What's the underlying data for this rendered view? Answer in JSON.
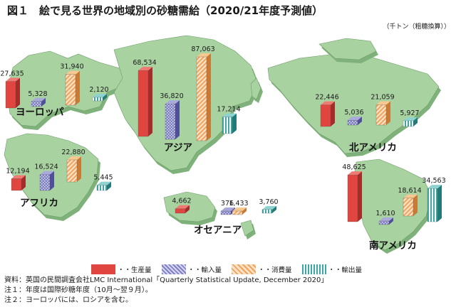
{
  "title": "図１　絵で見る世界の地域別の砂糖需給（2020/21年度予測値）",
  "unit": "（千トン（粗糖換算））",
  "colors": {
    "production": "#e0453f",
    "imports": "#7e7fc4",
    "consumption": "#f0a35c",
    "exports": "#3aa8a6",
    "land": "#a9d2a1",
    "land_side": "#7fb27a",
    "land_edge": "#6e9b69"
  },
  "legend": [
    {
      "key": "production",
      "label": "生産量"
    },
    {
      "key": "imports",
      "label": "輸入量"
    },
    {
      "key": "consumption",
      "label": "消費量"
    },
    {
      "key": "exports",
      "label": "輸出量"
    }
  ],
  "regions": [
    {
      "name": "ヨーロッパ",
      "production": "27,635",
      "imports": "5,328",
      "consumption": "31,940",
      "exports": "2,120"
    },
    {
      "name": "アジア",
      "production": "68,534",
      "imports": "36,820",
      "consumption": "87,063",
      "exports": "17,214"
    },
    {
      "name": "北アメリカ",
      "production": "22,446",
      "imports": "5,036",
      "consumption": "21,059",
      "exports": "5,927"
    },
    {
      "name": "アフリカ",
      "production": "12,194",
      "imports": "16,524",
      "consumption": "22,880",
      "exports": "5,445"
    },
    {
      "name": "オセアニア",
      "production": "4,662",
      "imports": "376",
      "consumption": "1,433",
      "exports": "3,760"
    },
    {
      "name": "南アメリカ",
      "production": "48,625",
      "imports": "1,610",
      "consumption": "18,614",
      "exports": "34,563"
    }
  ],
  "notes": [
    "資料：英国の民間調査会社LMC International「Quarterly Statistical Update, December 2020」",
    "注１：年度は国際砂糖年度（10月～翌９月）。",
    "注２：ヨーロッパには、ロシアを含む。"
  ]
}
